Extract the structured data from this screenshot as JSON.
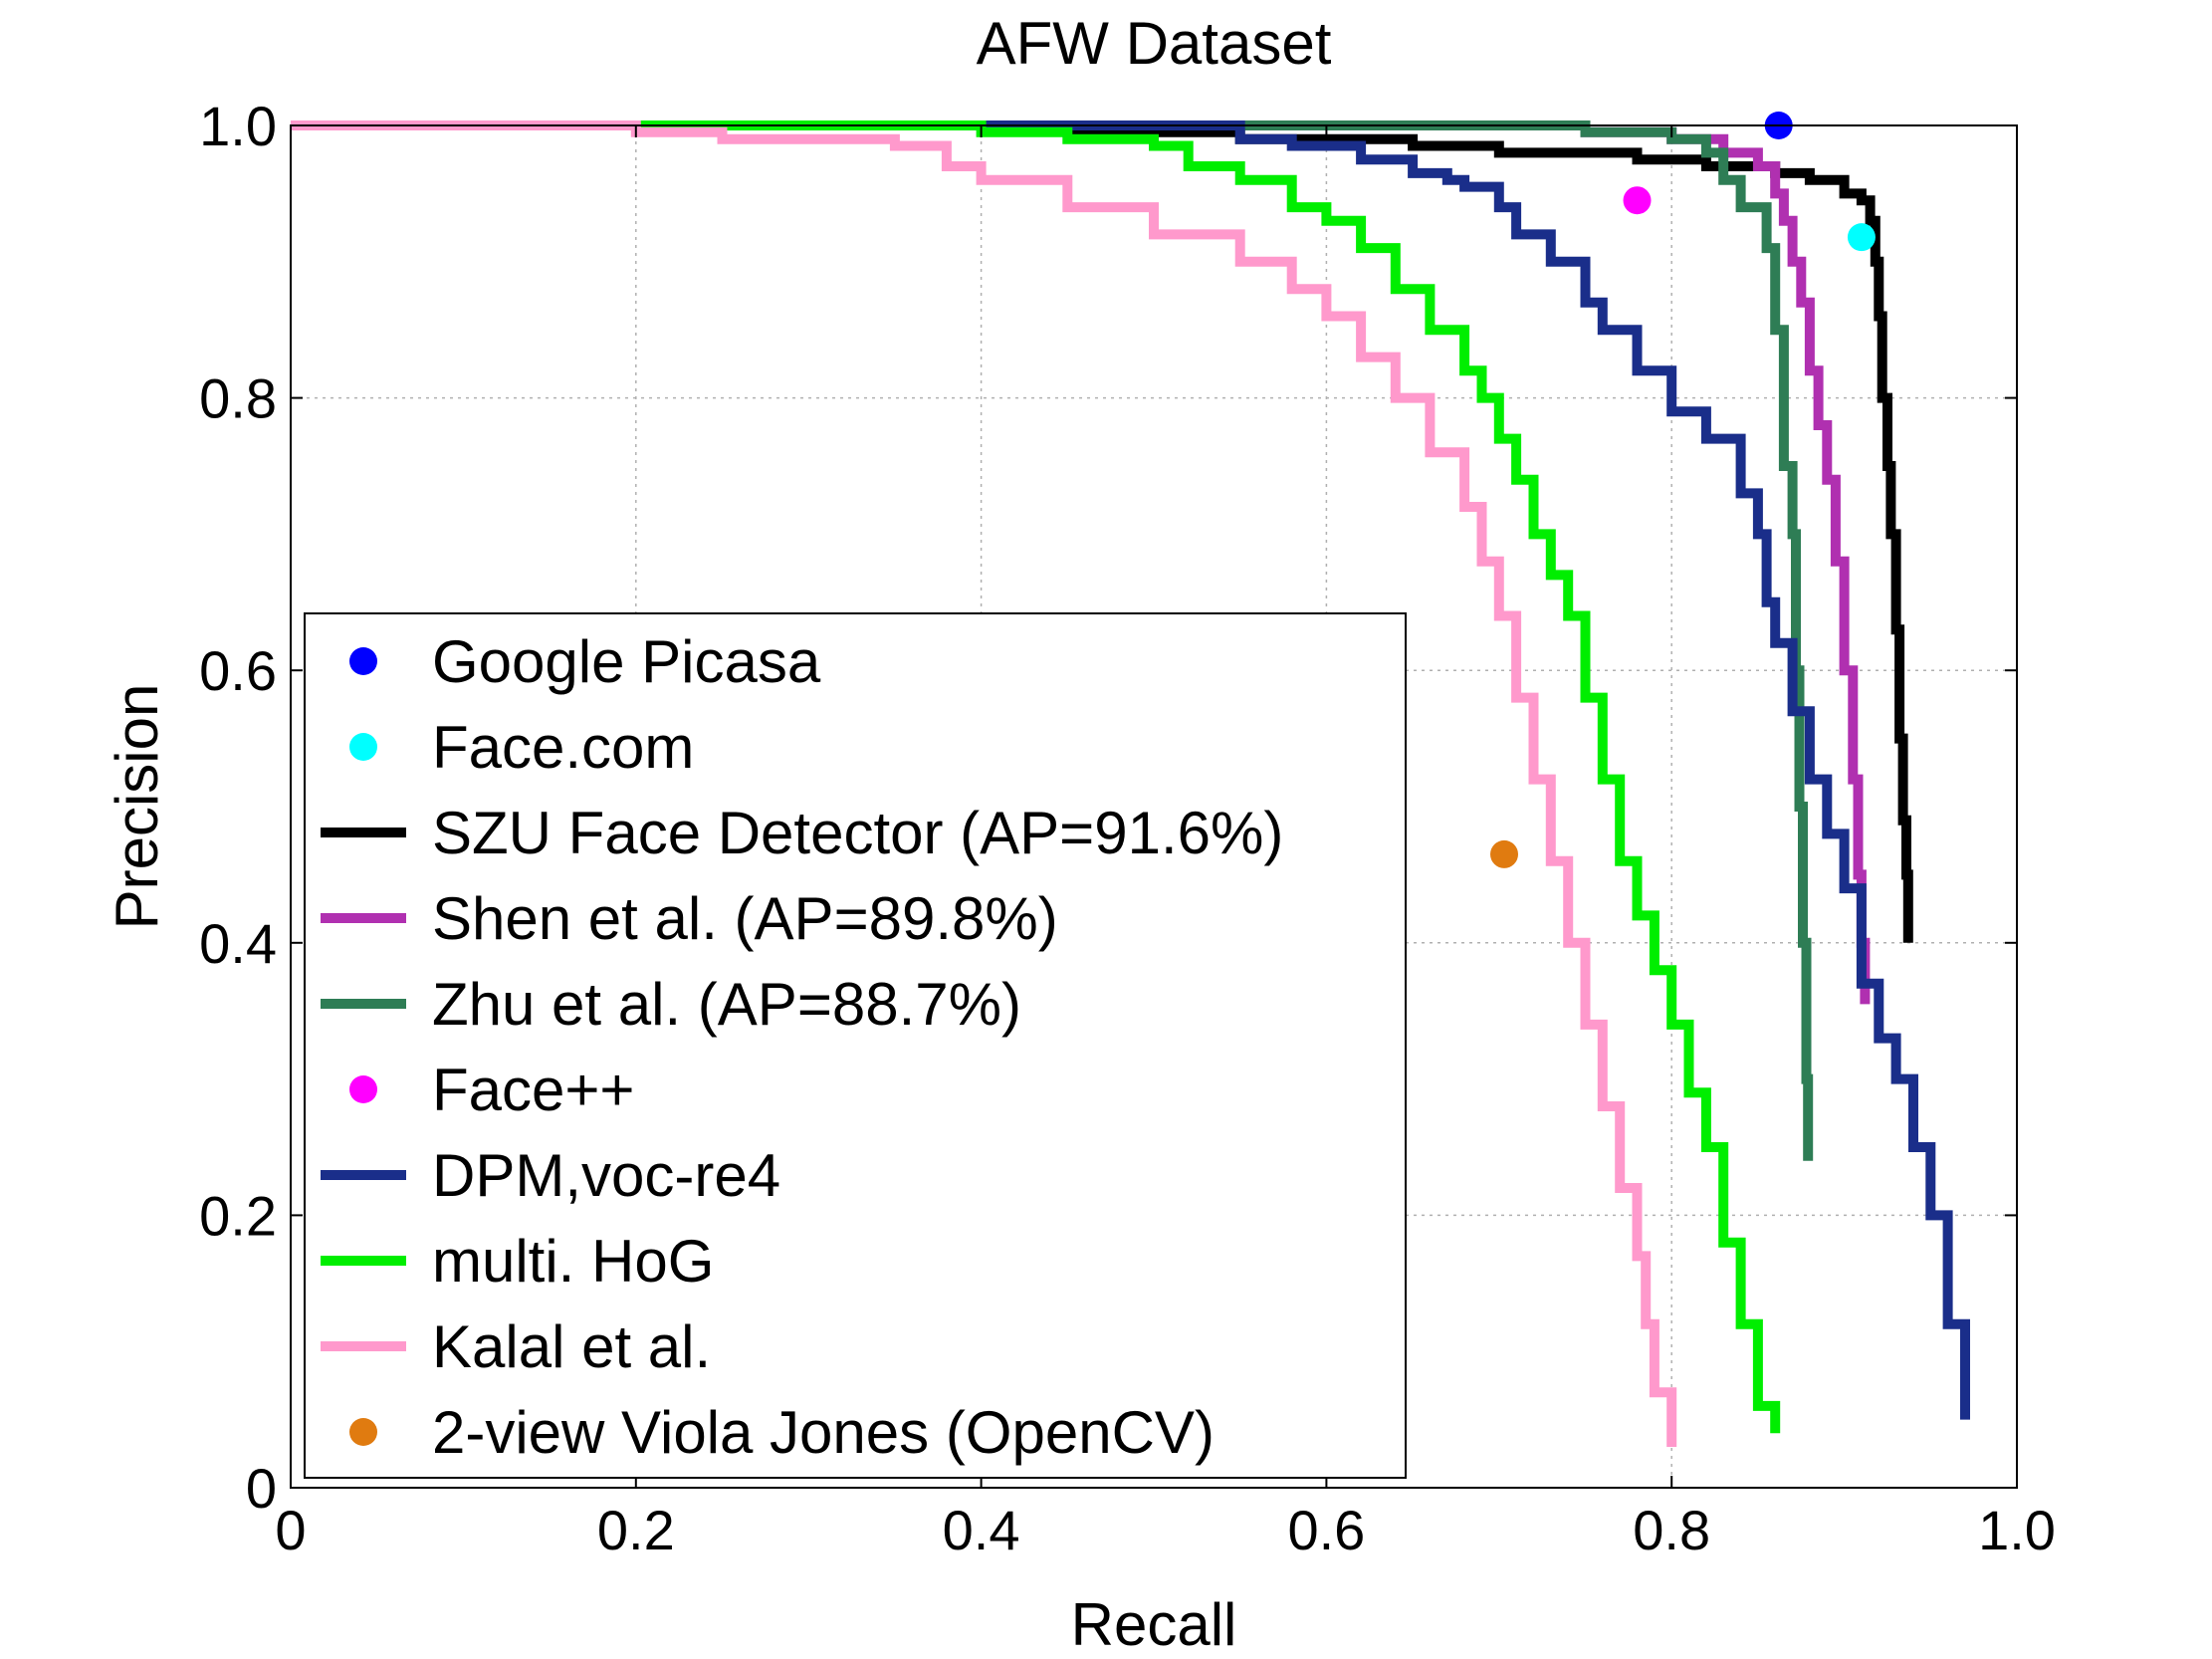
{
  "chart_data": {
    "type": "line",
    "title": "AFW Dataset",
    "xlabel": "Recall",
    "ylabel": "Precision",
    "xlim": [
      0,
      1
    ],
    "ylim": [
      0,
      1
    ],
    "grid": true,
    "legend_placement": "lower-left",
    "x_ticks": [
      {
        "value": 0,
        "label": "0"
      },
      {
        "value": 0.2,
        "label": "0.2"
      },
      {
        "value": 0.4,
        "label": "0.4"
      },
      {
        "value": 0.6,
        "label": "0.6"
      },
      {
        "value": 0.8,
        "label": "0.8"
      },
      {
        "value": 1.0,
        "label": "1.0"
      }
    ],
    "y_ticks": [
      {
        "value": 0,
        "label": "0"
      },
      {
        "value": 0.2,
        "label": "0.2"
      },
      {
        "value": 0.4,
        "label": "0.4"
      },
      {
        "value": 0.6,
        "label": "0.6"
      },
      {
        "value": 0.8,
        "label": "0.8"
      },
      {
        "value": 1.0,
        "label": "1.0"
      }
    ],
    "series": [
      {
        "name": "Google Picasa",
        "kind": "point",
        "color": "#0000ff",
        "points": [
          [
            0.862,
            1.0
          ]
        ]
      },
      {
        "name": "Face.com",
        "kind": "point",
        "color": "#00ffff",
        "points": [
          [
            0.91,
            0.918
          ]
        ]
      },
      {
        "name": "SZU Face Detector (AP=91.6%)",
        "kind": "line",
        "color": "#000000",
        "points": [
          [
            0,
            1.0
          ],
          [
            0.45,
            0.995
          ],
          [
            0.55,
            0.99
          ],
          [
            0.65,
            0.985
          ],
          [
            0.7,
            0.98
          ],
          [
            0.78,
            0.975
          ],
          [
            0.82,
            0.97
          ],
          [
            0.86,
            0.965
          ],
          [
            0.88,
            0.96
          ],
          [
            0.9,
            0.95
          ],
          [
            0.91,
            0.945
          ],
          [
            0.915,
            0.93
          ],
          [
            0.918,
            0.9
          ],
          [
            0.92,
            0.86
          ],
          [
            0.922,
            0.8
          ],
          [
            0.925,
            0.75
          ],
          [
            0.927,
            0.7
          ],
          [
            0.93,
            0.63
          ],
          [
            0.932,
            0.55
          ],
          [
            0.934,
            0.49
          ],
          [
            0.936,
            0.45
          ],
          [
            0.937,
            0.4
          ]
        ]
      },
      {
        "name": "Shen et al. (AP=89.8%)",
        "kind": "line",
        "color": "#b030b0",
        "points": [
          [
            0,
            1.0
          ],
          [
            0.6,
            1.0
          ],
          [
            0.75,
            0.995
          ],
          [
            0.8,
            0.99
          ],
          [
            0.83,
            0.98
          ],
          [
            0.85,
            0.97
          ],
          [
            0.86,
            0.95
          ],
          [
            0.865,
            0.93
          ],
          [
            0.87,
            0.9
          ],
          [
            0.875,
            0.87
          ],
          [
            0.88,
            0.82
          ],
          [
            0.885,
            0.78
          ],
          [
            0.89,
            0.74
          ],
          [
            0.895,
            0.68
          ],
          [
            0.9,
            0.6
          ],
          [
            0.905,
            0.52
          ],
          [
            0.908,
            0.45
          ],
          [
            0.91,
            0.4
          ],
          [
            0.912,
            0.355
          ]
        ]
      },
      {
        "name": "Zhu et al. (AP=88.7%)",
        "kind": "line",
        "color": "#2e7d55",
        "points": [
          [
            0,
            1.0
          ],
          [
            0.65,
            1.0
          ],
          [
            0.75,
            0.995
          ],
          [
            0.8,
            0.99
          ],
          [
            0.82,
            0.98
          ],
          [
            0.83,
            0.96
          ],
          [
            0.84,
            0.94
          ],
          [
            0.855,
            0.91
          ],
          [
            0.86,
            0.85
          ],
          [
            0.865,
            0.75
          ],
          [
            0.87,
            0.7
          ],
          [
            0.872,
            0.6
          ],
          [
            0.874,
            0.5
          ],
          [
            0.876,
            0.4
          ],
          [
            0.878,
            0.3
          ],
          [
            0.879,
            0.24
          ]
        ]
      },
      {
        "name": "Face++",
        "kind": "point",
        "color": "#ff00ff",
        "points": [
          [
            0.78,
            0.945
          ]
        ]
      },
      {
        "name": "DPM,voc-re4",
        "kind": "line",
        "color": "#1a2e8a",
        "points": [
          [
            0,
            1.0
          ],
          [
            0.55,
            0.99
          ],
          [
            0.58,
            0.985
          ],
          [
            0.62,
            0.975
          ],
          [
            0.65,
            0.965
          ],
          [
            0.67,
            0.96
          ],
          [
            0.68,
            0.955
          ],
          [
            0.7,
            0.94
          ],
          [
            0.71,
            0.92
          ],
          [
            0.73,
            0.9
          ],
          [
            0.75,
            0.87
          ],
          [
            0.76,
            0.85
          ],
          [
            0.78,
            0.82
          ],
          [
            0.8,
            0.79
          ],
          [
            0.82,
            0.77
          ],
          [
            0.84,
            0.73
          ],
          [
            0.85,
            0.7
          ],
          [
            0.855,
            0.65
          ],
          [
            0.86,
            0.62
          ],
          [
            0.87,
            0.57
          ],
          [
            0.88,
            0.52
          ],
          [
            0.89,
            0.48
          ],
          [
            0.9,
            0.44
          ],
          [
            0.91,
            0.37
          ],
          [
            0.92,
            0.33
          ],
          [
            0.93,
            0.3
          ],
          [
            0.94,
            0.25
          ],
          [
            0.95,
            0.2
          ],
          [
            0.96,
            0.12
          ],
          [
            0.97,
            0.05
          ]
        ]
      },
      {
        "name": "multi. HoG",
        "kind": "line",
        "color": "#00ee00",
        "points": [
          [
            0,
            1.0
          ],
          [
            0.35,
            1.0
          ],
          [
            0.4,
            0.995
          ],
          [
            0.45,
            0.99
          ],
          [
            0.5,
            0.985
          ],
          [
            0.52,
            0.97
          ],
          [
            0.55,
            0.96
          ],
          [
            0.58,
            0.94
          ],
          [
            0.6,
            0.93
          ],
          [
            0.62,
            0.91
          ],
          [
            0.64,
            0.88
          ],
          [
            0.66,
            0.85
          ],
          [
            0.68,
            0.82
          ],
          [
            0.69,
            0.8
          ],
          [
            0.7,
            0.77
          ],
          [
            0.71,
            0.74
          ],
          [
            0.72,
            0.7
          ],
          [
            0.73,
            0.67
          ],
          [
            0.74,
            0.64
          ],
          [
            0.75,
            0.58
          ],
          [
            0.76,
            0.52
          ],
          [
            0.77,
            0.46
          ],
          [
            0.78,
            0.42
          ],
          [
            0.79,
            0.38
          ],
          [
            0.8,
            0.34
          ],
          [
            0.81,
            0.29
          ],
          [
            0.82,
            0.25
          ],
          [
            0.83,
            0.18
          ],
          [
            0.84,
            0.12
          ],
          [
            0.85,
            0.06
          ],
          [
            0.86,
            0.04
          ]
        ]
      },
      {
        "name": "Kalal et al.",
        "kind": "line",
        "color": "#ff99cc",
        "points": [
          [
            0,
            1.0
          ],
          [
            0.2,
            0.995
          ],
          [
            0.25,
            0.99
          ],
          [
            0.3,
            0.99
          ],
          [
            0.35,
            0.985
          ],
          [
            0.38,
            0.97
          ],
          [
            0.4,
            0.96
          ],
          [
            0.45,
            0.94
          ],
          [
            0.5,
            0.92
          ],
          [
            0.55,
            0.9
          ],
          [
            0.58,
            0.88
          ],
          [
            0.6,
            0.86
          ],
          [
            0.62,
            0.83
          ],
          [
            0.64,
            0.8
          ],
          [
            0.66,
            0.76
          ],
          [
            0.68,
            0.72
          ],
          [
            0.69,
            0.68
          ],
          [
            0.7,
            0.64
          ],
          [
            0.71,
            0.58
          ],
          [
            0.72,
            0.52
          ],
          [
            0.73,
            0.46
          ],
          [
            0.74,
            0.4
          ],
          [
            0.75,
            0.34
          ],
          [
            0.76,
            0.28
          ],
          [
            0.77,
            0.22
          ],
          [
            0.78,
            0.17
          ],
          [
            0.785,
            0.12
          ],
          [
            0.79,
            0.07
          ],
          [
            0.8,
            0.03
          ]
        ]
      },
      {
        "name": "2-view Viola Jones (OpenCV)",
        "kind": "point",
        "color": "#e07b10",
        "points": [
          [
            0.703,
            0.465
          ]
        ]
      }
    ]
  }
}
